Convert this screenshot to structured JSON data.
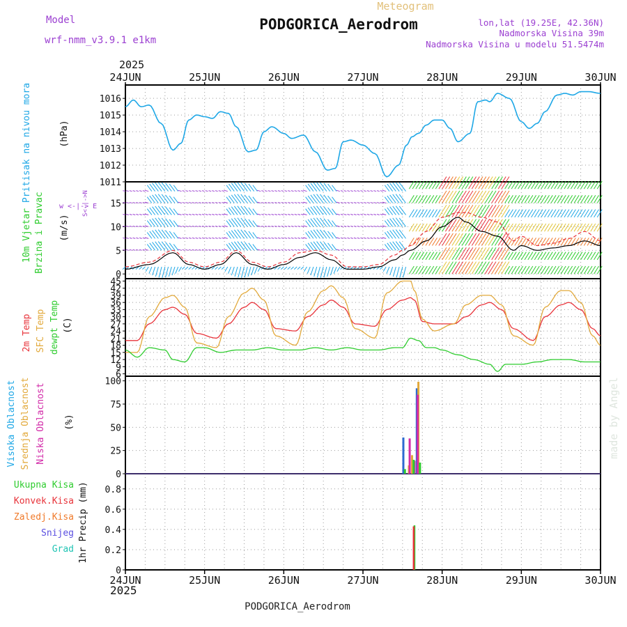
{
  "header": {
    "title_top": "Meteogram",
    "station": "PODGORICA_Aerodrom",
    "model_label": "Model",
    "model_name": "wrf-nmm_v3.9.1  e1km",
    "coords": "lon,lat (19.25E, 42.36N)",
    "elevation": "Nadmorska Visina 39m",
    "model_elevation": "Nadmorska Visina u modelu 51.5474m"
  },
  "footer": {
    "station": "PODGORICA_Aerodrom"
  },
  "watermark": "made by Angel",
  "time_axis": {
    "year": "2025",
    "days": [
      "24JUN",
      "25JUN",
      "26JUN",
      "27JUN",
      "28JUN",
      "29JUN",
      "30JUN"
    ]
  },
  "colors": {
    "pressure": "#1ea7e6",
    "wind_mean": "#000000",
    "gust": "#e8333a",
    "temp2m": "#e8333a",
    "sfc": "#e2a93b",
    "dew": "#2ecc2e",
    "cloud_high": "#2d6ad1",
    "cloud_mid": "#e2a93b",
    "cloud_low": "#d22aa8",
    "purple": "#9b3fd1",
    "cyan": "#1ea7e6"
  },
  "panels": {
    "pressure": {
      "ylabel": "Pritisak na nivou mora",
      "unit": "(hPa)",
      "ticks": [
        "1016",
        "1015",
        "1014",
        "1013",
        "1012",
        "1011"
      ]
    },
    "wind": {
      "ylabel1": "10m Vjetar",
      "ylabel2": "Brzina i Pravac",
      "unit": "(m/s)",
      "ticks": [
        "15",
        "10",
        "5",
        "0"
      ],
      "compass": "w <-|-> E",
      "compass2": "S<-|->N"
    },
    "temperature": {
      "ylabel1": "2m Temp",
      "ylabel2": "SFC Temp",
      "ylabel3": "dewpt Temp",
      "unit": "(C)",
      "ticks": [
        "45",
        "42",
        "39",
        "36",
        "33",
        "30",
        "27",
        "24",
        "21",
        "18",
        "15",
        "12",
        "9",
        "6"
      ]
    },
    "cloud": {
      "ylabel1": "Visoka Oblacnost",
      "ylabel2": "Srednja Oblacnost",
      "ylabel3": "Niska Oblacnost",
      "unit": "(%)",
      "ticks": [
        "100",
        "75",
        "50",
        "25",
        "0"
      ]
    },
    "precip": {
      "ylabel": "1hr Precip (mm)",
      "ticks": [
        "0.8",
        "0.6",
        "0.4",
        "0.2",
        "0"
      ],
      "legend": [
        {
          "label": "Ukupna Kisa",
          "color": "#2ecc2e"
        },
        {
          "label": "Konvek.Kisa",
          "color": "#e8333a"
        },
        {
          "label": "Zaledj.Kisa",
          "color": "#f07a2a"
        },
        {
          "label": "Snijeg",
          "color": "#5a4fe0"
        },
        {
          "label": "Grad",
          "color": "#20c4b4"
        }
      ]
    }
  },
  "chart_data": [
    {
      "type": "line",
      "name": "pressure",
      "ylabel": "Pritisak na nivou mora (hPa)",
      "ylim": [
        1011,
        1016.8
      ],
      "x": [
        0,
        0.1,
        0.2,
        0.3,
        0.45,
        0.6,
        0.7,
        0.8,
        0.9,
        1.0,
        1.1,
        1.2,
        1.3,
        1.4,
        1.55,
        1.65,
        1.75,
        1.85,
        2.0,
        2.1,
        2.25,
        2.4,
        2.55,
        2.65,
        2.75,
        2.85,
        3.0,
        3.15,
        3.3,
        3.45,
        3.55,
        3.62,
        3.7,
        3.8,
        3.9,
        4.0,
        4.1,
        4.2,
        4.35,
        4.45,
        4.55,
        4.6,
        4.7,
        4.85,
        5.0,
        5.1,
        5.2,
        5.3,
        5.45,
        5.55,
        5.65,
        5.75,
        5.85,
        6.0
      ],
      "values": [
        1015.5,
        1015.9,
        1015.5,
        1015.6,
        1014.5,
        1012.9,
        1013.3,
        1014.7,
        1015.0,
        1014.9,
        1014.8,
        1015.2,
        1015.1,
        1014.3,
        1012.8,
        1012.9,
        1014.0,
        1014.3,
        1013.9,
        1013.6,
        1013.8,
        1012.8,
        1011.7,
        1011.8,
        1013.4,
        1013.5,
        1013.2,
        1012.7,
        1011.3,
        1012.0,
        1013.2,
        1013.7,
        1013.9,
        1014.4,
        1014.7,
        1014.7,
        1014.2,
        1013.4,
        1013.9,
        1015.8,
        1015.9,
        1015.8,
        1016.3,
        1016.0,
        1014.6,
        1014.2,
        1014.5,
        1015.2,
        1016.2,
        1016.3,
        1016.2,
        1016.4,
        1016.4,
        1016.3
      ]
    },
    {
      "type": "line",
      "name": "wind",
      "ylabel": "10m Vjetar Brzina i Pravac (m/s)",
      "ylim": [
        -1,
        19.5
      ],
      "series": [
        {
          "name": "mean",
          "x": [
            0,
            0.3,
            0.6,
            0.8,
            1.0,
            1.2,
            1.4,
            1.6,
            1.8,
            2.0,
            2.2,
            2.4,
            2.6,
            2.8,
            3.0,
            3.2,
            3.4,
            3.5,
            3.6,
            3.8,
            4.0,
            4.2,
            4.3,
            4.5,
            4.7,
            4.9,
            5.0,
            5.2,
            5.4,
            5.6,
            5.8,
            6.0
          ],
          "values": [
            1,
            2,
            4.5,
            2,
            1,
            2,
            4.5,
            2,
            1,
            2,
            3.5,
            4.5,
            3,
            1,
            1,
            1.5,
            3,
            4,
            5,
            7,
            10,
            12,
            11,
            9,
            8,
            5,
            6,
            5,
            5.5,
            6,
            7,
            6
          ]
        },
        {
          "name": "gust",
          "x": [
            0,
            0.3,
            0.6,
            0.8,
            1.0,
            1.2,
            1.4,
            1.6,
            1.8,
            2.0,
            2.2,
            2.4,
            2.6,
            2.8,
            3.0,
            3.2,
            3.4,
            3.5,
            3.6,
            3.8,
            4.0,
            4.2,
            4.3,
            4.5,
            4.7,
            4.9,
            5.0,
            5.2,
            5.4,
            5.6,
            5.8,
            6.0
          ],
          "values": [
            1.5,
            2.5,
            5,
            2.5,
            1.5,
            2.5,
            5,
            2.5,
            1.5,
            2.5,
            4.5,
            5,
            4,
            1.5,
            1.5,
            2,
            4,
            5,
            6,
            9,
            12,
            13,
            13,
            12,
            11,
            7,
            8,
            6,
            6.5,
            7.5,
            9,
            7
          ]
        }
      ]
    },
    {
      "type": "line",
      "name": "temperature",
      "ylabel": "2m Temp / SFC Temp / dewpt Temp (C)",
      "ylim": [
        5,
        46
      ],
      "series": [
        {
          "name": "2m Temp",
          "x": [
            0,
            0.15,
            0.3,
            0.5,
            0.6,
            0.75,
            0.9,
            1.15,
            1.3,
            1.5,
            1.6,
            1.75,
            1.9,
            2.15,
            2.3,
            2.5,
            2.6,
            2.75,
            2.9,
            3.15,
            3.3,
            3.5,
            3.6,
            3.65,
            3.75,
            3.9,
            4.15,
            4.3,
            4.5,
            4.6,
            4.75,
            4.9,
            5.15,
            5.3,
            5.5,
            5.6,
            5.75,
            5.9,
            6.0
          ],
          "values": [
            20,
            20,
            27,
            33,
            34,
            31,
            23,
            21,
            27,
            34,
            36,
            33,
            25,
            24,
            30,
            35,
            37,
            34,
            27,
            26,
            33,
            37,
            38,
            37,
            28,
            27,
            27,
            30,
            35,
            36,
            33,
            25,
            20,
            30,
            35,
            36,
            33,
            25,
            22
          ]
        },
        {
          "name": "SFC Temp",
          "x": [
            0,
            0.15,
            0.3,
            0.5,
            0.6,
            0.75,
            0.9,
            1.15,
            1.3,
            1.5,
            1.6,
            1.75,
            1.9,
            2.15,
            2.3,
            2.5,
            2.6,
            2.75,
            2.9,
            3.15,
            3.3,
            3.5,
            3.6,
            3.65,
            3.75,
            3.9,
            4.15,
            4.3,
            4.5,
            4.6,
            4.75,
            4.9,
            5.15,
            5.3,
            5.5,
            5.6,
            5.75,
            5.9,
            6.0
          ],
          "values": [
            15,
            15,
            30,
            38,
            39,
            34,
            19,
            17,
            30,
            40,
            42,
            37,
            22,
            18,
            32,
            41,
            43,
            38,
            25,
            21,
            40,
            45,
            45,
            41,
            29,
            24,
            27,
            35,
            39,
            39,
            35,
            22,
            18,
            34,
            41,
            41,
            36,
            22,
            18
          ]
        },
        {
          "name": "dewpt Temp",
          "x": [
            0,
            0.15,
            0.3,
            0.5,
            0.6,
            0.75,
            0.9,
            1.0,
            1.2,
            1.4,
            1.6,
            1.8,
            2.0,
            2.2,
            2.4,
            2.6,
            2.8,
            3.0,
            3.2,
            3.4,
            3.5,
            3.6,
            3.7,
            3.8,
            3.9,
            4.0,
            4.2,
            4.4,
            4.6,
            4.7,
            4.8,
            5.0,
            5.2,
            5.4,
            5.6,
            5.8,
            6.0
          ],
          "values": [
            16,
            13,
            17,
            16,
            12,
            11,
            17,
            17,
            15,
            16,
            16,
            17,
            16,
            16,
            17,
            16,
            17,
            16,
            16,
            17,
            17,
            21,
            20,
            17,
            17,
            16,
            14,
            12,
            10,
            7,
            10,
            10,
            11,
            12,
            12,
            11,
            11
          ]
        }
      ]
    },
    {
      "type": "bar",
      "name": "cloud",
      "ylabel": "Oblacnost (%)",
      "ylim": [
        0,
        105
      ],
      "series": [
        {
          "name": "Visoka Oblacnost",
          "x": [
            3.51,
            3.68,
            3.71
          ],
          "values": [
            39,
            92,
            10
          ]
        },
        {
          "name": "Srednja Oblacnost",
          "x": [
            3.58,
            3.62,
            3.7
          ],
          "values": [
            9,
            20,
            99
          ]
        },
        {
          "name": "Niska Oblacnost",
          "x": [
            3.59,
            3.65,
            3.69
          ],
          "values": [
            38,
            14,
            85
          ]
        },
        {
          "name": "other",
          "x": [
            3.53,
            3.64,
            3.72
          ],
          "values": [
            5,
            15,
            12
          ]
        }
      ]
    },
    {
      "type": "bar",
      "name": "precip",
      "ylabel": "1hr Precip (mm)",
      "ylim": [
        0,
        0.95
      ],
      "series": [
        {
          "name": "Ukupna Kisa",
          "x": [
            3.65
          ],
          "values": [
            0.44
          ]
        },
        {
          "name": "Konvek.Kisa",
          "x": [
            3.64
          ],
          "values": [
            0.43
          ]
        }
      ]
    }
  ]
}
